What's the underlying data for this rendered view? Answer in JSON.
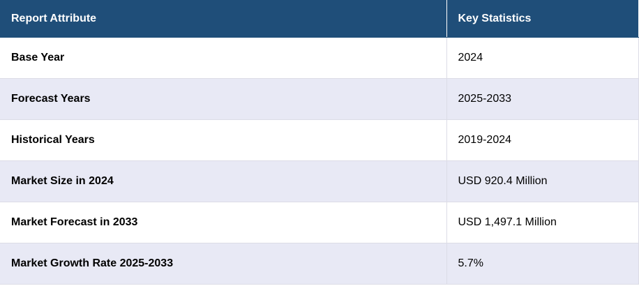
{
  "table": {
    "headers": {
      "attribute": "Report Attribute",
      "statistics": "Key Statistics"
    },
    "rows": [
      {
        "attribute": "Base Year",
        "value": "2024"
      },
      {
        "attribute": "Forecast Years",
        "value": "2025-2033"
      },
      {
        "attribute": "Historical Years",
        "value": "2019-2024"
      },
      {
        "attribute": "Market Size in 2024",
        "value": "USD 920.4 Million"
      },
      {
        "attribute": "Market Forecast in 2033",
        "value": "USD 1,497.1 Million"
      },
      {
        "attribute": "Market Growth Rate 2025-2033",
        "value": "5.7%"
      }
    ]
  },
  "colors": {
    "header_bg": "#1f4e79",
    "stripe_bg": "#e8e9f5"
  }
}
